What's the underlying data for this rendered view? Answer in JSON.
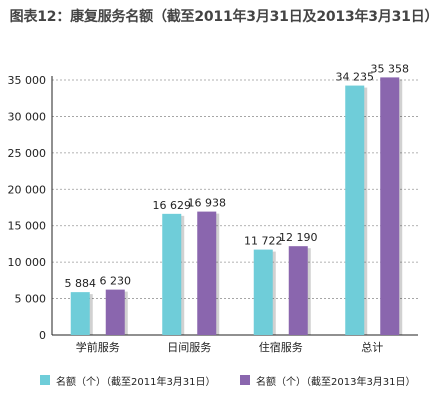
{
  "chart_data": {
    "type": "bar",
    "title": "图表12：康复服务名额（截至2011年3月31日及2013年3月31日）",
    "categories": [
      "学前服务",
      "日间服务",
      "住宿服务",
      "总计"
    ],
    "series": [
      {
        "name": "名额（个）（截至2011年3月31日）",
        "values": [
          5884,
          16629,
          11722,
          34235
        ],
        "labels": [
          "5 884",
          "16 629",
          "11 722",
          "34 235"
        ],
        "color": "#6fcdd9"
      },
      {
        "name": "名额（个）（截至2013年3月31日）",
        "values": [
          6230,
          16938,
          12190,
          35358
        ],
        "labels": [
          "6 230",
          "16 938",
          "12 190",
          "35 358"
        ],
        "color": "#8a66ae"
      }
    ],
    "ylim": [
      0,
      35000
    ],
    "yticks": [
      0,
      5000,
      10000,
      15000,
      20000,
      25000,
      30000,
      35000
    ],
    "ytick_labels": [
      "0",
      "5 000",
      "10 000",
      "15 000",
      "20 000",
      "25 000",
      "30 000",
      "35 000"
    ],
    "grid": true,
    "legend_position": "bottom"
  }
}
